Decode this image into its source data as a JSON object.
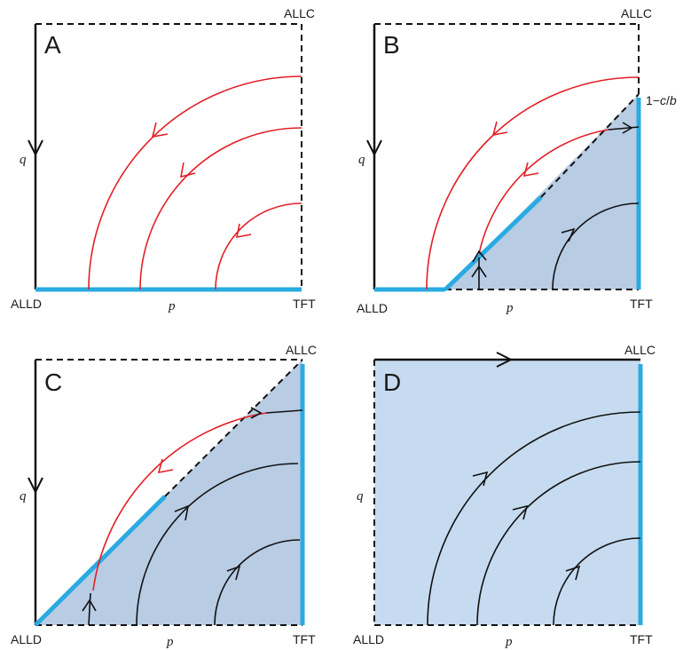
{
  "colors": {
    "red": "#e21f26",
    "black": "#111111",
    "blue": "#29abe2",
    "region_dark": "#b8cce4",
    "region_light": "#c6dbf0"
  },
  "labels": {
    "allc": "ALLC",
    "alld": "ALLD",
    "tft": "TFT",
    "p": "p",
    "q": "q",
    "threshold_prefix": "1−",
    "threshold_c": "c",
    "threshold_slash": "/",
    "threshold_b": "b"
  },
  "panels": [
    {
      "letter": "A"
    },
    {
      "letter": "B"
    },
    {
      "letter": "C"
    },
    {
      "letter": "D"
    }
  ]
}
